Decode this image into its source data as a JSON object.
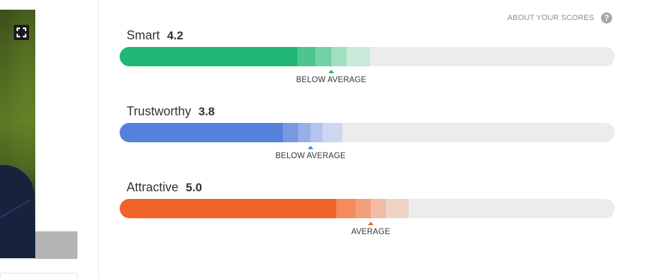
{
  "about_scores": {
    "label": "ABOUT YOUR SCORES",
    "icon": "help-icon",
    "icon_glyph": "?"
  },
  "photo_controls": {
    "expand_icon": "expand-icon"
  },
  "scores": [
    {
      "name": "Smart",
      "value": "4.2",
      "verdict": "BELOW AVERAGE",
      "color": "#20b673",
      "shades": [
        "#20b673",
        "#4fc58e",
        "#73d2a5",
        "#a1dfc0",
        "#c8ead8"
      ],
      "average_position": 0.43
    },
    {
      "name": "Trustworthy",
      "value": "3.8",
      "verdict": "BELOW AVERAGE",
      "color": "#4f7fd8",
      "shades": [
        "#5580db",
        "#7898e0",
        "#97afe6",
        "#b4c4ec",
        "#cdd7ef"
      ],
      "average_position": 0.38
    },
    {
      "name": "Attractive",
      "value": "5.0",
      "verdict": "AVERAGE",
      "color": "#f06429",
      "shades": [
        "#f06429",
        "#f38b5c",
        "#f4a07a",
        "#f2bba3",
        "#f0d3c7"
      ],
      "average_position": 0.51
    }
  ]
}
